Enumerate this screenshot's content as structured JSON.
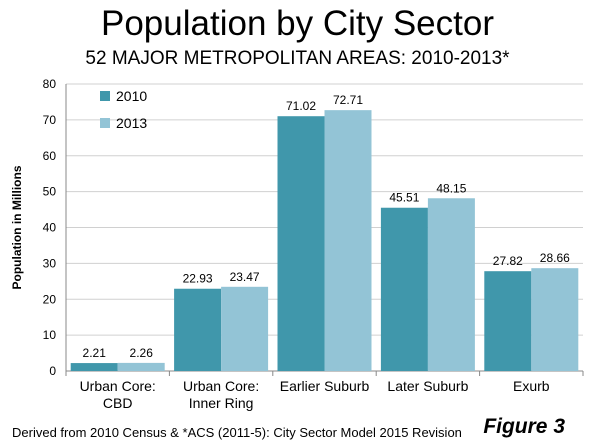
{
  "header": {
    "title": "Population by City Sector",
    "subtitle": "52 MAJOR METROPOLITAN AREAS: 2010-2013*"
  },
  "footer": {
    "source": "Derived from 2010 Census & *ACS (2011-5): City Sector Model 2015 Revision",
    "figure_label": "Figure 3"
  },
  "chart_data": {
    "type": "bar",
    "title": "Population by City Sector",
    "subtitle": "52 MAJOR METROPOLITAN AREAS: 2010-2013*",
    "xlabel": "",
    "ylabel": "Population in Millions",
    "ylim": [
      0,
      80
    ],
    "yticks": [
      0,
      10,
      20,
      30,
      40,
      50,
      60,
      70,
      80
    ],
    "grid": true,
    "legend_position": "top-left",
    "categories": [
      [
        "Urban Core:",
        "CBD"
      ],
      [
        "Urban Core:",
        "Inner Ring"
      ],
      [
        "Earlier Suburb"
      ],
      [
        "Later Suburb"
      ],
      [
        "Exurb"
      ]
    ],
    "series": [
      {
        "name": "2010",
        "color": "#4097ab",
        "values": [
          2.21,
          22.93,
          71.02,
          45.51,
          27.82
        ]
      },
      {
        "name": "2013",
        "color": "#93c4d6",
        "values": [
          2.26,
          23.47,
          72.71,
          48.15,
          28.66
        ]
      }
    ],
    "data_labels": true
  }
}
